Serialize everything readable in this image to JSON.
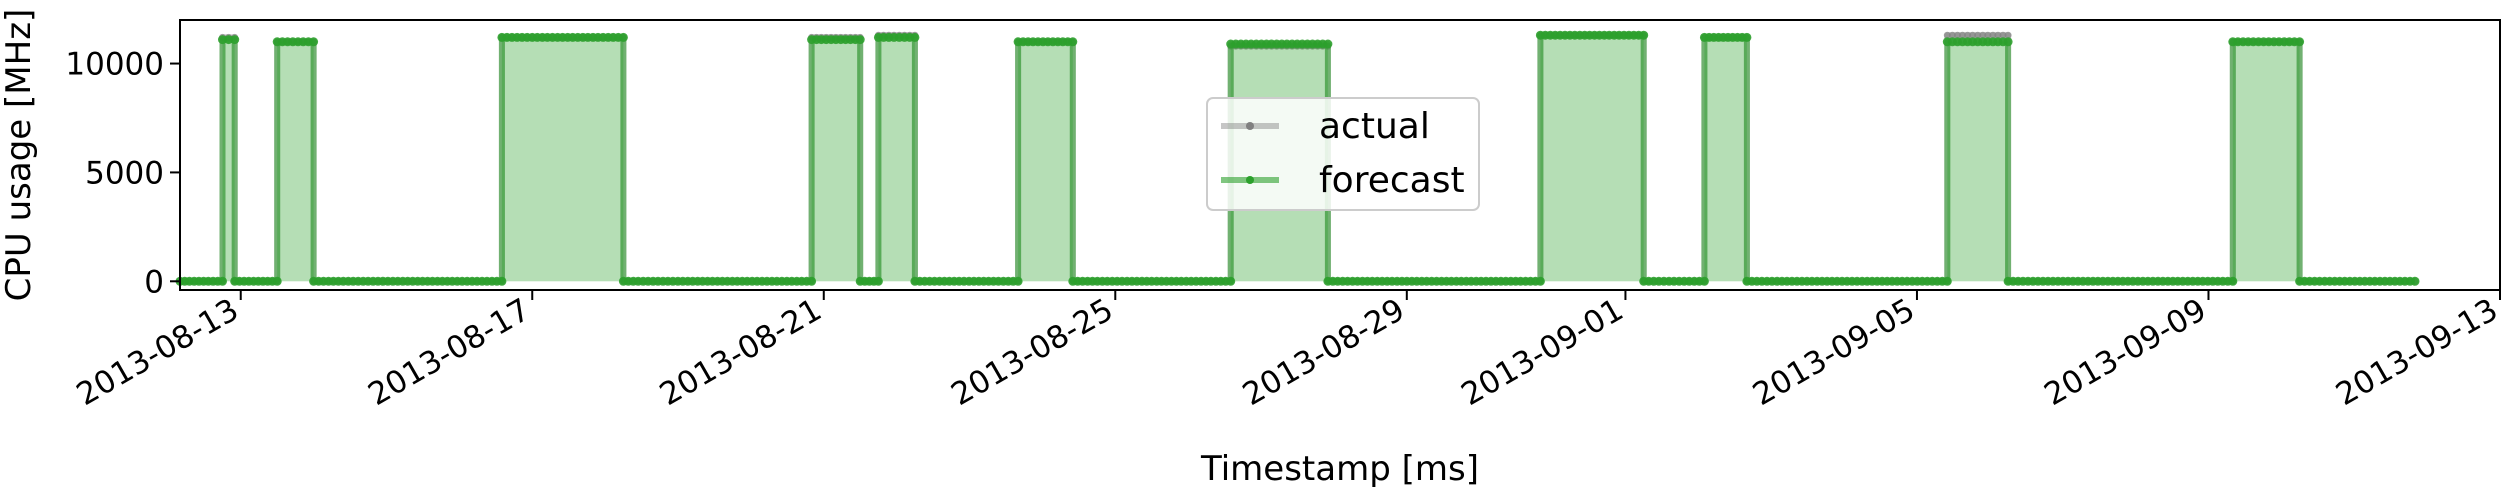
{
  "chart_data": {
    "type": "line",
    "title": "",
    "xlabel": "Timestamp [ms]",
    "ylabel": "CPU usage [MHz]",
    "ylim": [
      -400,
      12000
    ],
    "xlim": [
      "2013-08-12T04:00",
      "2013-09-13T00:00"
    ],
    "yticks": [
      0,
      5000,
      10000
    ],
    "ytick_labels": [
      "0",
      "5000",
      "10000"
    ],
    "xticks": [
      "2013-08-13",
      "2013-08-17",
      "2013-08-21",
      "2013-08-25",
      "2013-08-29",
      "2013-09-01",
      "2013-09-05",
      "2013-09-09",
      "2013-09-13"
    ],
    "xtick_labels": [
      "2013-08-13",
      "2013-08-17",
      "2013-08-21",
      "2013-08-25",
      "2013-08-29",
      "2013-09-01",
      "2013-09-05",
      "2013-09-09",
      "2013-09-13"
    ],
    "grid": false,
    "legend": {
      "position": "center",
      "entries": [
        "actual",
        "forecast"
      ]
    },
    "colors": {
      "actual": "#808080",
      "forecast": "#2ca02c"
    },
    "series": [
      {
        "name": "actual",
        "segments": [
          {
            "start": "2013-08-12T04:00",
            "end": "2013-08-12T18:00",
            "value": 0
          },
          {
            "start": "2013-08-12T18:00",
            "end": "2013-08-12T22:00",
            "value": 11200
          },
          {
            "start": "2013-08-12T22:00",
            "end": "2013-08-13T12:00",
            "value": 0
          },
          {
            "start": "2013-08-13T12:00",
            "end": "2013-08-14T00:00",
            "value": 11000
          },
          {
            "start": "2013-08-14T00:00",
            "end": "2013-08-16T14:00",
            "value": 0
          },
          {
            "start": "2013-08-16T14:00",
            "end": "2013-08-18T06:00",
            "value": 11200
          },
          {
            "start": "2013-08-18T06:00",
            "end": "2013-08-20T20:00",
            "value": 0
          },
          {
            "start": "2013-08-20T20:00",
            "end": "2013-08-21T12:00",
            "value": 11200
          },
          {
            "start": "2013-08-21T12:00",
            "end": "2013-08-21T18:00",
            "value": 0
          },
          {
            "start": "2013-08-21T18:00",
            "end": "2013-08-22T06:00",
            "value": 11300
          },
          {
            "start": "2013-08-22T06:00",
            "end": "2013-08-23T16:00",
            "value": 0
          },
          {
            "start": "2013-08-23T16:00",
            "end": "2013-08-24T10:00",
            "value": 11000
          },
          {
            "start": "2013-08-24T10:00",
            "end": "2013-08-26T14:00",
            "value": 0
          },
          {
            "start": "2013-08-26T14:00",
            "end": "2013-08-27T22:00",
            "value": 10800
          },
          {
            "start": "2013-08-27T22:00",
            "end": "2013-08-30T20:00",
            "value": 0
          },
          {
            "start": "2013-08-30T20:00",
            "end": "2013-09-01T06:00",
            "value": 11300
          },
          {
            "start": "2013-09-01T06:00",
            "end": "2013-09-02T02:00",
            "value": 0
          },
          {
            "start": "2013-09-02T02:00",
            "end": "2013-09-02T16:00",
            "value": 11200
          },
          {
            "start": "2013-09-02T16:00",
            "end": "2013-09-05T10:00",
            "value": 0
          },
          {
            "start": "2013-09-05T10:00",
            "end": "2013-09-06T06:00",
            "value": 11300
          },
          {
            "start": "2013-09-06T06:00",
            "end": "2013-09-09T08:00",
            "value": 0
          },
          {
            "start": "2013-09-09T08:00",
            "end": "2013-09-10T06:00",
            "value": 11000
          },
          {
            "start": "2013-09-10T06:00",
            "end": "2013-09-11T20:00",
            "value": 0
          }
        ]
      },
      {
        "name": "forecast",
        "segments": [
          {
            "start": "2013-08-12T04:00",
            "end": "2013-08-12T18:00",
            "value": 0
          },
          {
            "start": "2013-08-12T18:00",
            "end": "2013-08-12T22:00",
            "value": 11100
          },
          {
            "start": "2013-08-12T22:00",
            "end": "2013-08-13T12:00",
            "value": 0
          },
          {
            "start": "2013-08-13T12:00",
            "end": "2013-08-14T00:00",
            "value": 11000
          },
          {
            "start": "2013-08-14T00:00",
            "end": "2013-08-16T14:00",
            "value": 0
          },
          {
            "start": "2013-08-16T14:00",
            "end": "2013-08-18T06:00",
            "value": 11200
          },
          {
            "start": "2013-08-18T06:00",
            "end": "2013-08-20T20:00",
            "value": 0
          },
          {
            "start": "2013-08-20T20:00",
            "end": "2013-08-21T12:00",
            "value": 11100
          },
          {
            "start": "2013-08-21T12:00",
            "end": "2013-08-21T18:00",
            "value": 0
          },
          {
            "start": "2013-08-21T18:00",
            "end": "2013-08-22T06:00",
            "value": 11200
          },
          {
            "start": "2013-08-22T06:00",
            "end": "2013-08-23T16:00",
            "value": 0
          },
          {
            "start": "2013-08-23T16:00",
            "end": "2013-08-24T10:00",
            "value": 11000
          },
          {
            "start": "2013-08-24T10:00",
            "end": "2013-08-26T14:00",
            "value": 0
          },
          {
            "start": "2013-08-26T14:00",
            "end": "2013-08-27T22:00",
            "value": 10900
          },
          {
            "start": "2013-08-27T22:00",
            "end": "2013-08-30T20:00",
            "value": 0
          },
          {
            "start": "2013-08-30T20:00",
            "end": "2013-09-01T06:00",
            "value": 11300
          },
          {
            "start": "2013-09-01T06:00",
            "end": "2013-09-02T02:00",
            "value": 0
          },
          {
            "start": "2013-09-02T02:00",
            "end": "2013-09-02T16:00",
            "value": 11200
          },
          {
            "start": "2013-09-02T16:00",
            "end": "2013-09-05T10:00",
            "value": 0
          },
          {
            "start": "2013-09-05T10:00",
            "end": "2013-09-06T06:00",
            "value": 11000
          },
          {
            "start": "2013-09-06T06:00",
            "end": "2013-09-09T08:00",
            "value": 0
          },
          {
            "start": "2013-09-09T08:00",
            "end": "2013-09-10T06:00",
            "value": 11000
          },
          {
            "start": "2013-09-10T06:00",
            "end": "2013-09-11T20:00",
            "value": 0
          }
        ]
      }
    ]
  }
}
